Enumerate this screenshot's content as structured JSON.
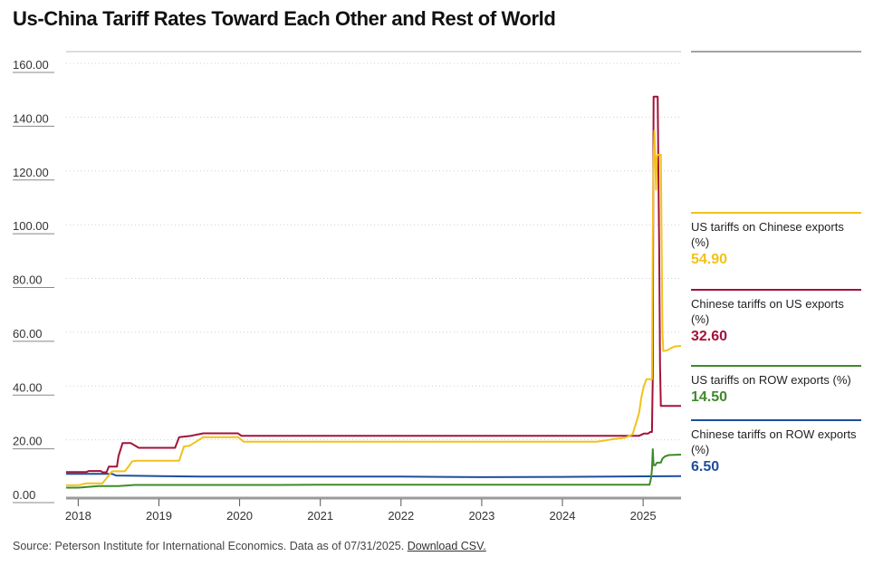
{
  "chart_data": {
    "type": "line",
    "title": "Us-China Tariff Rates Toward Each Other and Rest of World",
    "xlabel": "",
    "ylabel": "",
    "xlim": [
      2017.85,
      2025.47
    ],
    "ylim": [
      0,
      160
    ],
    "yticks": [
      "160.00",
      "140.00",
      "120.00",
      "100.00",
      "80.00",
      "60.00",
      "40.00",
      "20.00",
      "0.00"
    ],
    "ytick_values": [
      160,
      140,
      120,
      100,
      80,
      60,
      40,
      20,
      0
    ],
    "xticks": [
      "2018",
      "2019",
      "2020",
      "2021",
      "2022",
      "2023",
      "2024",
      "2025"
    ],
    "xtick_values": [
      2018,
      2019,
      2020,
      2021,
      2022,
      2023,
      2024,
      2025
    ],
    "grid": true,
    "series": [
      {
        "name": "US tariffs on Chinese exports (%)",
        "color": "#f2c21a",
        "latest": "54.90",
        "points": [
          [
            2017.85,
            3.1
          ],
          [
            2018.0,
            3.1
          ],
          [
            2018.1,
            3.8
          ],
          [
            2018.3,
            3.8
          ],
          [
            2018.42,
            8.3
          ],
          [
            2018.58,
            8.3
          ],
          [
            2018.67,
            12.0
          ],
          [
            2018.72,
            12.2
          ],
          [
            2019.25,
            12.2
          ],
          [
            2019.31,
            17.5
          ],
          [
            2019.38,
            17.8
          ],
          [
            2019.55,
            21.0
          ],
          [
            2019.98,
            21.0
          ],
          [
            2020.05,
            19.3
          ],
          [
            2024.42,
            19.3
          ],
          [
            2024.5,
            19.6
          ],
          [
            2024.6,
            20.1
          ],
          [
            2024.78,
            20.8
          ],
          [
            2024.87,
            22.0
          ],
          [
            2024.95,
            30.0
          ],
          [
            2024.98,
            36.0
          ],
          [
            2025.01,
            40.0
          ],
          [
            2025.04,
            42.5
          ],
          [
            2025.11,
            42.5
          ],
          [
            2025.12,
            95.0
          ],
          [
            2025.13,
            124.0
          ],
          [
            2025.14,
            135.0
          ],
          [
            2025.15,
            126.0
          ],
          [
            2025.16,
            113.0
          ],
          [
            2025.17,
            125.0
          ],
          [
            2025.18,
            126.0
          ],
          [
            2025.22,
            126.0
          ],
          [
            2025.24,
            60.0
          ],
          [
            2025.25,
            53.0
          ],
          [
            2025.3,
            53.3
          ],
          [
            2025.34,
            54.0
          ],
          [
            2025.39,
            54.7
          ],
          [
            2025.47,
            54.9
          ]
        ]
      },
      {
        "name": "Chinese tariffs on US exports (%)",
        "color": "#a3123a",
        "latest": "32.60",
        "points": [
          [
            2017.85,
            8.0
          ],
          [
            2018.1,
            8.0
          ],
          [
            2018.13,
            8.4
          ],
          [
            2018.28,
            8.4
          ],
          [
            2018.3,
            7.9
          ],
          [
            2018.35,
            7.9
          ],
          [
            2018.38,
            10.0
          ],
          [
            2018.48,
            10.0
          ],
          [
            2018.5,
            14.0
          ],
          [
            2018.55,
            18.8
          ],
          [
            2018.65,
            18.8
          ],
          [
            2018.75,
            17.0
          ],
          [
            2019.2,
            17.0
          ],
          [
            2019.25,
            21.0
          ],
          [
            2019.4,
            21.5
          ],
          [
            2019.55,
            22.4
          ],
          [
            2019.98,
            22.4
          ],
          [
            2020.02,
            21.5
          ],
          [
            2024.95,
            21.5
          ],
          [
            2025.01,
            22.3
          ],
          [
            2025.06,
            22.3
          ],
          [
            2025.09,
            22.9
          ],
          [
            2025.11,
            22.9
          ],
          [
            2025.12,
            44.0
          ],
          [
            2025.125,
            110.0
          ],
          [
            2025.13,
            147.6
          ],
          [
            2025.18,
            147.6
          ],
          [
            2025.2,
            90.0
          ],
          [
            2025.21,
            48.0
          ],
          [
            2025.22,
            32.6
          ],
          [
            2025.47,
            32.6
          ]
        ]
      },
      {
        "name": "US tariffs on ROW exports (%)",
        "color": "#3f8a2b",
        "latest": "14.50",
        "points": [
          [
            2017.85,
            2.2
          ],
          [
            2018.0,
            2.2
          ],
          [
            2018.25,
            2.8
          ],
          [
            2018.5,
            2.8
          ],
          [
            2018.7,
            3.2
          ],
          [
            2020.5,
            3.2
          ],
          [
            2021.0,
            3.3
          ],
          [
            2024.0,
            3.3
          ],
          [
            2025.08,
            3.3
          ],
          [
            2025.09,
            4.5
          ],
          [
            2025.1,
            6.0
          ],
          [
            2025.11,
            9.0
          ],
          [
            2025.12,
            16.5
          ],
          [
            2025.13,
            10.5
          ],
          [
            2025.15,
            10.5
          ],
          [
            2025.17,
            11.5
          ],
          [
            2025.22,
            11.5
          ],
          [
            2025.24,
            13.0
          ],
          [
            2025.27,
            13.8
          ],
          [
            2025.32,
            14.3
          ],
          [
            2025.47,
            14.5
          ]
        ]
      },
      {
        "name": "Chinese tariffs on ROW exports (%)",
        "color": "#1f4e9c",
        "latest": "6.50",
        "points": [
          [
            2017.85,
            7.3
          ],
          [
            2018.42,
            7.3
          ],
          [
            2018.47,
            6.7
          ],
          [
            2018.72,
            6.6
          ],
          [
            2019.0,
            6.5
          ],
          [
            2019.5,
            6.3
          ],
          [
            2020.0,
            6.3
          ],
          [
            2021.0,
            6.3
          ],
          [
            2022.0,
            6.3
          ],
          [
            2022.5,
            6.2
          ],
          [
            2023.0,
            6.1
          ],
          [
            2024.0,
            6.2
          ],
          [
            2025.0,
            6.4
          ],
          [
            2025.47,
            6.5
          ]
        ]
      }
    ]
  },
  "source": {
    "text": "Source: Peterson Institute for International Economics. Data as of 07/31/2025.",
    "link": "Download CSV."
  }
}
